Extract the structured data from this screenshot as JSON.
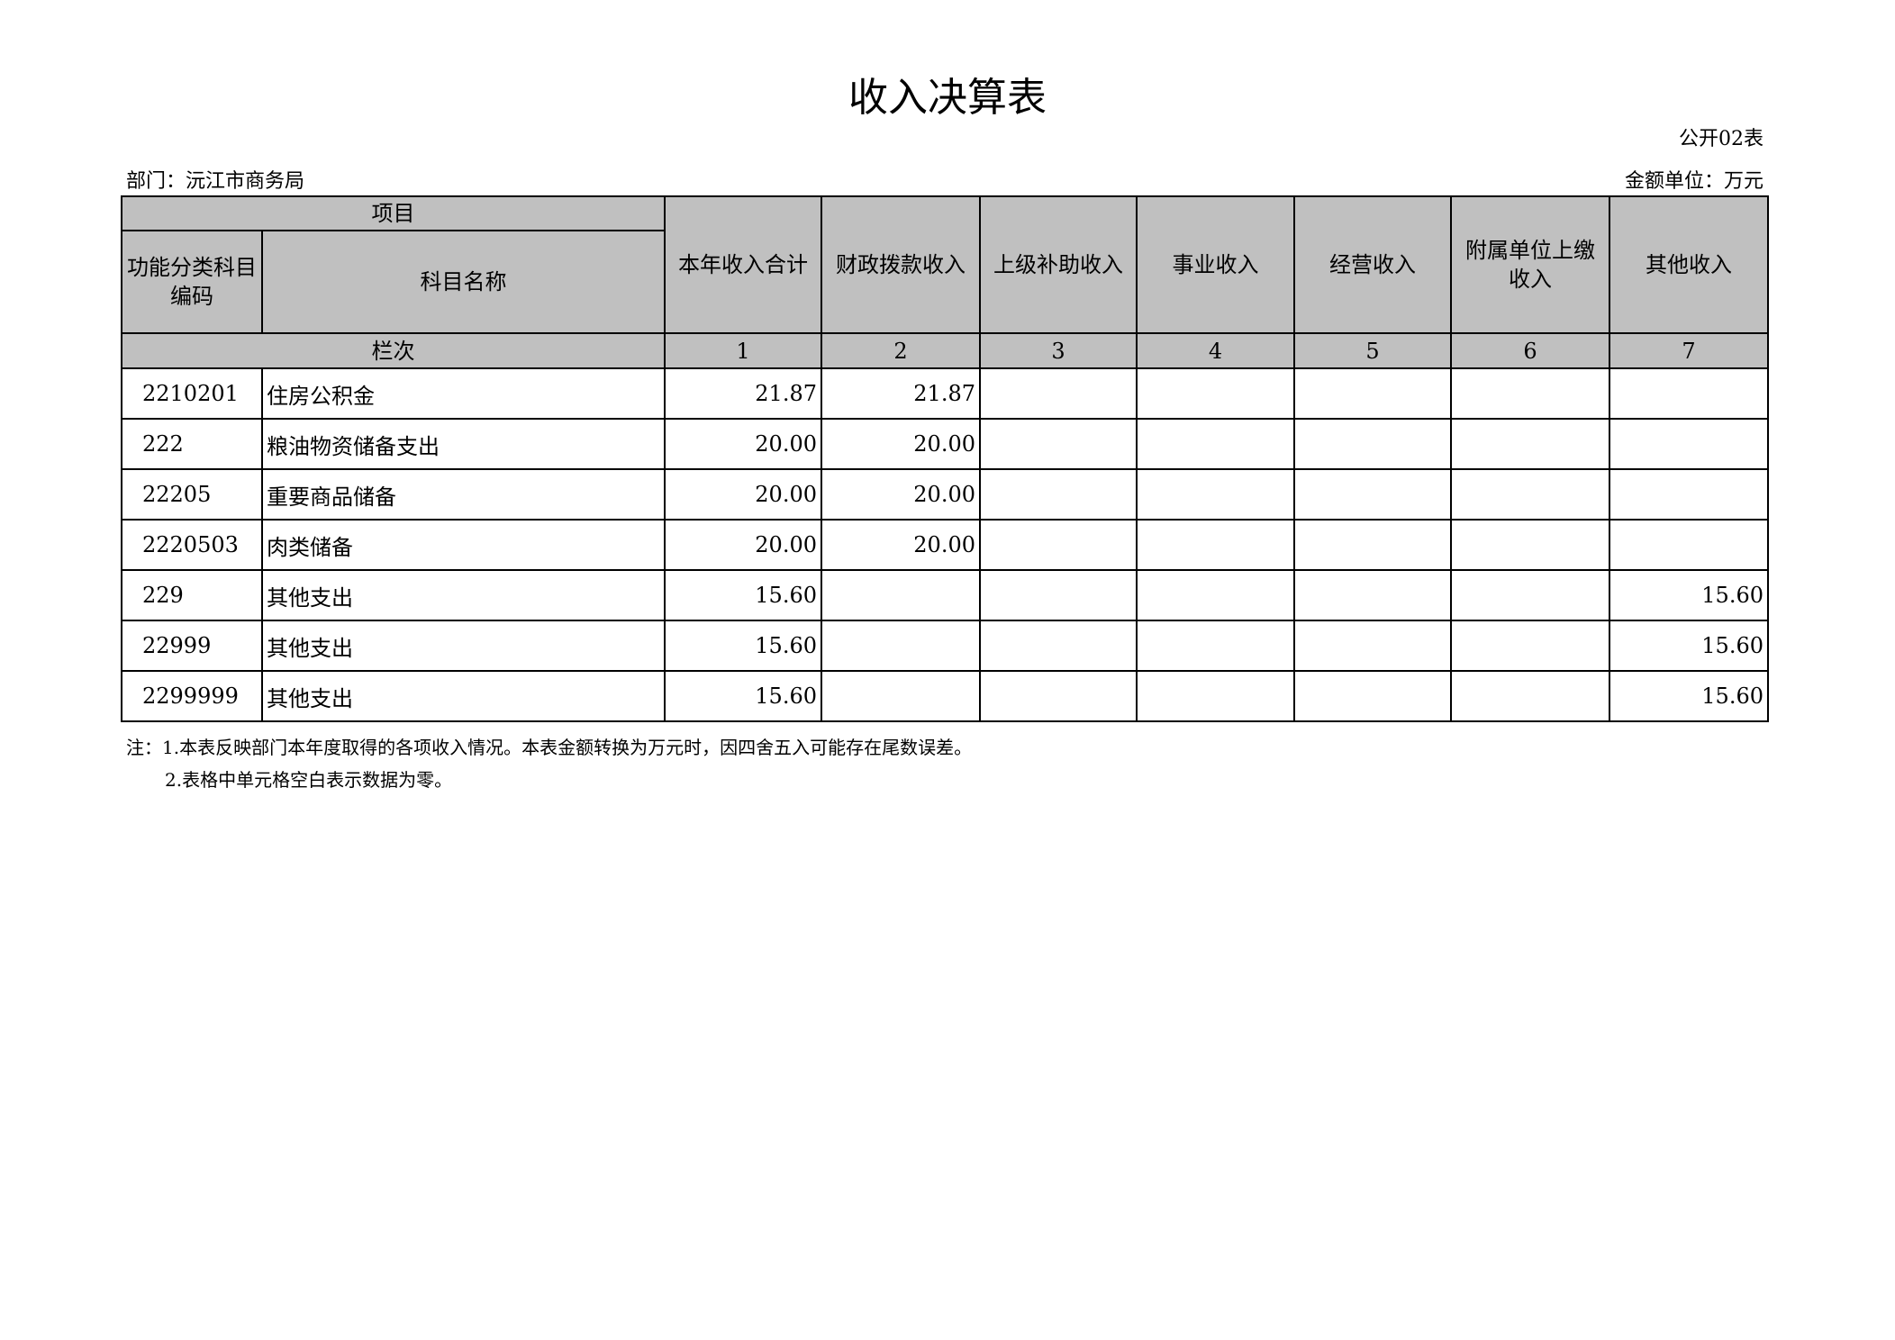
{
  "title": "收入决算表",
  "form_no": "公开02表",
  "department": "部门：沅江市商务局",
  "unit": "金额单位：万元",
  "header": {
    "project": "项目",
    "code": "功能分类科目编码",
    "name": "科目名称",
    "columns": [
      "本年收入合计",
      "财政拨款收入",
      "上级补助收入",
      "事业收入",
      "经营收入",
      "附属单位上缴收入",
      "其他收入"
    ],
    "row_label": "栏次",
    "col_numbers": [
      "1",
      "2",
      "3",
      "4",
      "5",
      "6",
      "7"
    ]
  },
  "rows": [
    {
      "code": "2210201",
      "name": "住房公积金",
      "values": [
        "21.87",
        "21.87",
        "",
        "",
        "",
        "",
        ""
      ]
    },
    {
      "code": "222",
      "name": "粮油物资储备支出",
      "values": [
        "20.00",
        "20.00",
        "",
        "",
        "",
        "",
        ""
      ]
    },
    {
      "code": "22205",
      "name": "重要商品储备",
      "values": [
        "20.00",
        "20.00",
        "",
        "",
        "",
        "",
        ""
      ]
    },
    {
      "code": "2220503",
      "name": "肉类储备",
      "values": [
        "20.00",
        "20.00",
        "",
        "",
        "",
        "",
        ""
      ]
    },
    {
      "code": "229",
      "name": "其他支出",
      "values": [
        "15.60",
        "",
        "",
        "",
        "",
        "",
        "15.60"
      ]
    },
    {
      "code": "22999",
      "name": "其他支出",
      "values": [
        "15.60",
        "",
        "",
        "",
        "",
        "",
        "15.60"
      ]
    },
    {
      "code": "2299999",
      "name": "其他支出",
      "values": [
        "15.60",
        "",
        "",
        "",
        "",
        "",
        "15.60"
      ]
    }
  ],
  "notes": [
    "注：1.本表反映部门本年度取得的各项收入情况。本表金额转换为万元时，因四舍五入可能存在尾数误差。",
    "2.表格中单元格空白表示数据为零。"
  ]
}
